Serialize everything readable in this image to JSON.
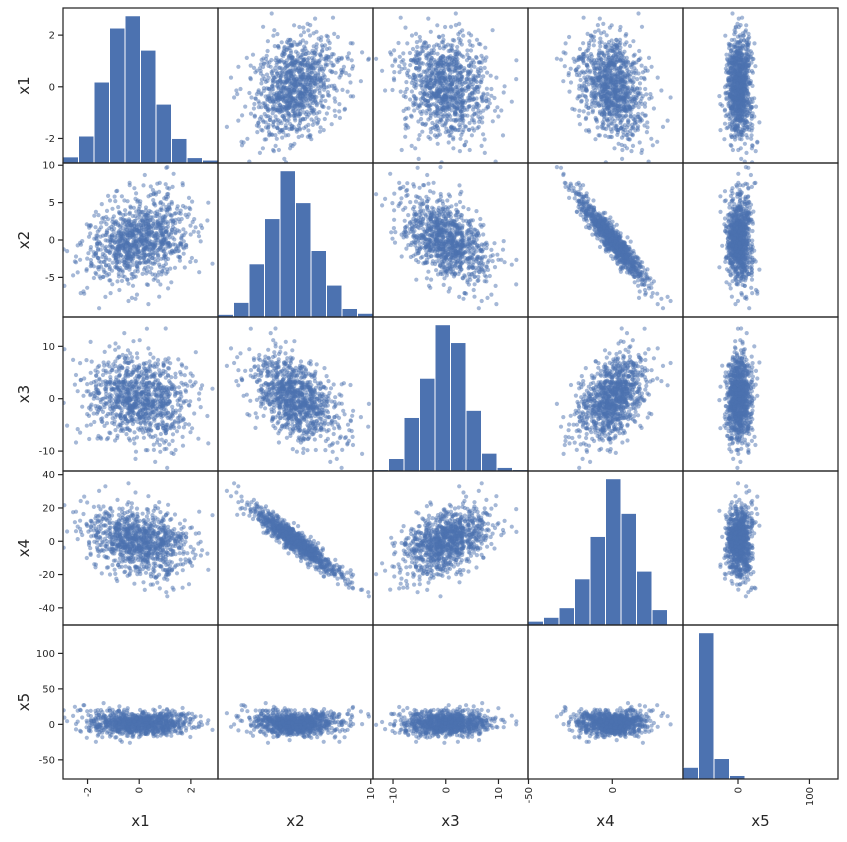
{
  "chart_data": {
    "type": "scatter-matrix",
    "variables": [
      "x1",
      "x2",
      "x3",
      "x4",
      "x5"
    ],
    "colors": {
      "marker": "#4c72b0",
      "bar": "#4c72b0",
      "frame": "#262626",
      "background": "#ffffff"
    },
    "marker_alpha": 0.5,
    "grid": false,
    "points": {
      "n": 1000
    },
    "ranges": {
      "x1": [
        -2.95,
        3.05
      ],
      "x2": [
        -10.3,
        10.3
      ],
      "x3": [
        -13.8,
        15.6
      ],
      "x4": [
        -50.3,
        42.2
      ],
      "x5": [
        -77,
        140
      ]
    },
    "y_ticks": {
      "x1": [
        -2,
        0,
        2
      ],
      "x2": [
        -5,
        0,
        5,
        10
      ],
      "x3": [
        -10,
        0,
        10
      ],
      "x4": [
        -40,
        -20,
        0,
        20,
        40
      ],
      "x5": [
        -50,
        0,
        50,
        100
      ]
    },
    "x_ticks": {
      "x1": [
        -2,
        0,
        2
      ],
      "x2": [
        10
      ],
      "x3": [
        -10,
        0,
        10
      ],
      "x4": [
        -50,
        0
      ],
      "x5": [
        0,
        100
      ]
    },
    "histograms": {
      "x1": [
        0.025,
        0.11,
        0.33,
        0.55,
        0.6,
        0.46,
        0.24,
        0.1,
        0.022,
        0.012
      ],
      "x2": [
        0.01,
        0.055,
        0.2,
        0.37,
        0.55,
        0.43,
        0.25,
        0.12,
        0.032,
        0.014
      ],
      "x3": [
        0.004,
        0.035,
        0.15,
        0.26,
        0.41,
        0.36,
        0.17,
        0.05,
        0.01,
        0.004
      ],
      "x4": [
        0.01,
        0.02,
        0.045,
        0.12,
        0.23,
        0.38,
        0.29,
        0.14,
        0.04,
        0.002
      ],
      "x5": [
        0.02,
        0.25,
        0.035,
        0.006,
        0.001,
        0.0005,
        0.0003,
        0.0002,
        0.0001,
        5e-05
      ]
    }
  }
}
